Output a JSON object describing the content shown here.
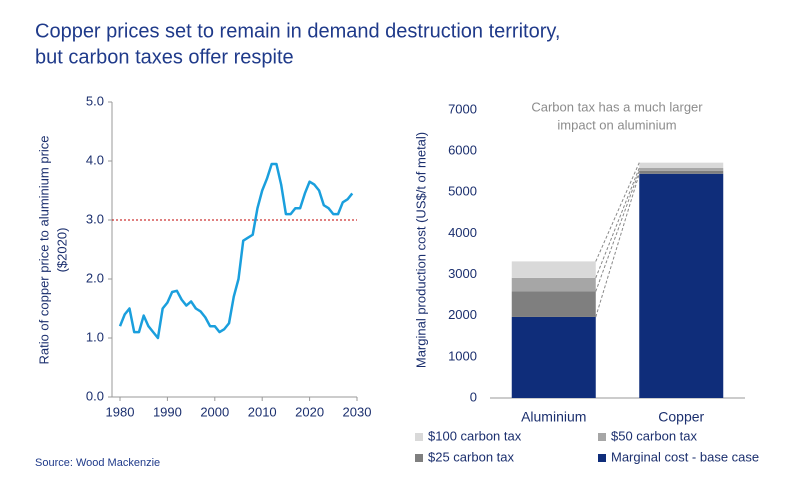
{
  "title": [
    "Copper prices set to remain in demand destruction territory,",
    "but carbon taxes offer respite"
  ],
  "source": "Source: Wood Mackenzie",
  "chart_data": [
    {
      "type": "line",
      "ylabel": [
        "Ratio of copper price to aluminium price",
        "($2020)"
      ],
      "x": [
        1980,
        1981,
        1982,
        1983,
        1984,
        1985,
        1986,
        1987,
        1988,
        1989,
        1990,
        1991,
        1992,
        1993,
        1994,
        1995,
        1996,
        1997,
        1998,
        1999,
        2000,
        2001,
        2002,
        2003,
        2004,
        2005,
        2006,
        2007,
        2008,
        2009,
        2010,
        2011,
        2012,
        2013,
        2014,
        2015,
        2016,
        2017,
        2018,
        2019,
        2020,
        2021,
        2022,
        2023,
        2024,
        2025,
        2026,
        2027,
        2028,
        2029
      ],
      "series": [
        {
          "color": "#1a9fdd",
          "values": [
            1.2,
            1.4,
            1.5,
            1.1,
            1.1,
            1.38,
            1.2,
            1.1,
            1.0,
            1.5,
            1.6,
            1.78,
            1.8,
            1.65,
            1.55,
            1.62,
            1.5,
            1.45,
            1.35,
            1.2,
            1.2,
            1.1,
            1.15,
            1.25,
            1.7,
            2.0,
            2.65,
            2.7,
            2.75,
            3.2,
            3.5,
            3.7,
            3.95,
            3.95,
            3.6,
            3.1,
            3.1,
            3.2,
            3.2,
            3.45,
            3.65,
            3.6,
            3.5,
            3.25,
            3.2,
            3.1,
            3.1,
            3.3,
            3.35,
            3.45
          ]
        }
      ],
      "hline": 3.0,
      "hline_color": "#c00000",
      "xlim": [
        1980,
        2030
      ],
      "xticks": [
        1980,
        1990,
        2000,
        2010,
        2020,
        2030
      ],
      "ylim": [
        0,
        5
      ],
      "yticks": [
        {
          "value": 0,
          "label": "0.0"
        },
        {
          "value": 1,
          "label": "1.0"
        },
        {
          "value": 2,
          "label": "2.0"
        },
        {
          "value": 3,
          "label": "3.0"
        },
        {
          "value": 4,
          "label": "4.0"
        },
        {
          "value": 5,
          "label": "5.0"
        }
      ]
    },
    {
      "type": "stacked_bar",
      "ylabel": "Marginal production cost (US$/t of metal)",
      "annotation": [
        "Carbon tax has a much larger",
        "impact on aluminium"
      ],
      "categories": [
        "Aluminium",
        "Copper"
      ],
      "series": [
        {
          "name": "Marginal cost - base case",
          "color": "#0f2d7a",
          "values": [
            1970,
            5450
          ]
        },
        {
          "name": "$25 carbon tax",
          "color": "#7f7f7f",
          "values": [
            620,
            70
          ]
        },
        {
          "name": "$50 carbon tax",
          "color": "#a6a6a6",
          "values": [
            330,
            70
          ]
        },
        {
          "name": "$100 carbon tax",
          "color": "#d9d9d9",
          "values": [
            400,
            130
          ]
        }
      ],
      "ylim": [
        0,
        7000
      ],
      "yticks": [
        0,
        1000,
        2000,
        3000,
        4000,
        5000,
        6000,
        7000
      ]
    }
  ]
}
